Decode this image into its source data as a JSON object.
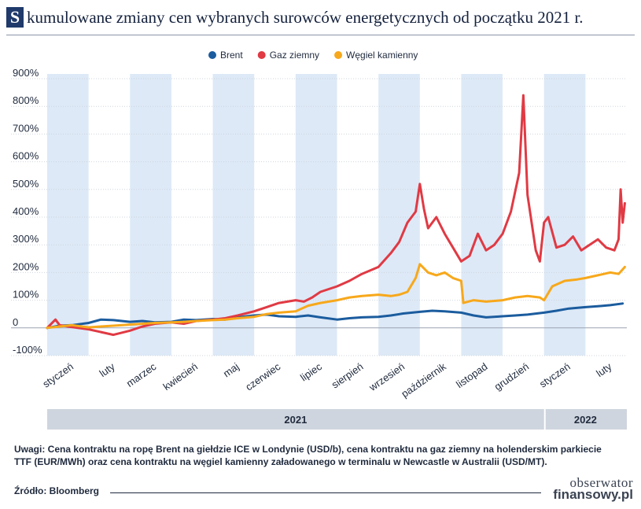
{
  "header": {
    "badge": "S",
    "title": "kumulowane zmiany cen wybranych surowców energetycznych od początku 2021 r."
  },
  "chart_data": {
    "type": "line",
    "title": "Skumulowane zmiany cen wybranych surowców energetycznych od początku 2021 r.",
    "ylim": [
      -100,
      900
    ],
    "y_ticks": [
      -100,
      0,
      100,
      200,
      300,
      400,
      500,
      600,
      700,
      800,
      900
    ],
    "y_tick_labels": [
      "-100%",
      "0",
      "100%",
      "200%",
      "300%",
      "400%",
      "500%",
      "600%",
      "700%",
      "800%",
      "900%"
    ],
    "x_unit": "month index (0 = start of January 2021)",
    "xlim": [
      0,
      14
    ],
    "months": [
      "styczeń",
      "luty",
      "marzec",
      "kwiecień",
      "maj",
      "czerwiec",
      "lipiec",
      "sierpień",
      "wrzesień",
      "październik",
      "listopad",
      "grudzień",
      "styczeń",
      "luty"
    ],
    "years": [
      {
        "label": "2021",
        "start": 0,
        "end": 12
      },
      {
        "label": "2022",
        "start": 12,
        "end": 14
      }
    ],
    "grid": true,
    "legend_position": "top-center",
    "series": [
      {
        "name": "Brent",
        "color": "#1b5c9e",
        "x": [
          0,
          0.3,
          0.6,
          1,
          1.3,
          1.6,
          2,
          2.3,
          2.6,
          3,
          3.3,
          3.6,
          4,
          4.3,
          4.6,
          5,
          5.3,
          5.6,
          6,
          6.3,
          6.6,
          7,
          7.3,
          7.6,
          8,
          8.3,
          8.6,
          9,
          9.3,
          9.6,
          10,
          10.3,
          10.6,
          11,
          11.3,
          11.6,
          12,
          12.3,
          12.6,
          13,
          13.3,
          13.6,
          13.9
        ],
        "y": [
          0,
          8,
          10,
          18,
          30,
          28,
          22,
          25,
          20,
          22,
          30,
          28,
          32,
          30,
          38,
          45,
          48,
          42,
          40,
          45,
          38,
          30,
          35,
          38,
          40,
          45,
          52,
          58,
          62,
          60,
          55,
          45,
          38,
          42,
          45,
          48,
          55,
          62,
          70,
          75,
          78,
          82,
          88
        ]
      },
      {
        "name": "Gaz ziemny",
        "color": "#e03a44",
        "x": [
          0,
          0.2,
          0.3,
          0.5,
          1,
          1.3,
          1.6,
          2,
          2.3,
          2.6,
          3,
          3.3,
          3.6,
          4,
          4.3,
          4.6,
          5,
          5.3,
          5.6,
          6,
          6.2,
          6.4,
          6.6,
          7,
          7.3,
          7.6,
          8,
          8.3,
          8.5,
          8.7,
          8.9,
          9.0,
          9.1,
          9.2,
          9.4,
          9.6,
          9.8,
          10.0,
          10.2,
          10.4,
          10.6,
          10.8,
          11.0,
          11.2,
          11.4,
          11.5,
          11.6,
          11.8,
          11.9,
          12.0,
          12.1,
          12.3,
          12.5,
          12.7,
          12.9,
          13.1,
          13.3,
          13.5,
          13.7,
          13.8,
          13.85,
          13.9,
          13.95
        ],
        "y": [
          0,
          30,
          10,
          5,
          -5,
          -15,
          -25,
          -10,
          5,
          15,
          20,
          15,
          25,
          30,
          35,
          45,
          60,
          75,
          90,
          100,
          95,
          110,
          130,
          150,
          170,
          195,
          220,
          270,
          310,
          380,
          420,
          520,
          430,
          360,
          400,
          340,
          290,
          240,
          260,
          340,
          280,
          300,
          340,
          420,
          560,
          840,
          480,
          280,
          240,
          380,
          400,
          290,
          300,
          330,
          280,
          300,
          320,
          290,
          280,
          320,
          500,
          380,
          450
        ]
      },
      {
        "name": "Węgiel kamienny",
        "color": "#f7a81b",
        "x": [
          0,
          0.3,
          0.6,
          1,
          1.3,
          1.6,
          2,
          2.3,
          2.6,
          3,
          3.3,
          3.6,
          4,
          4.3,
          4.6,
          5,
          5.3,
          5.6,
          6,
          6.3,
          6.6,
          7,
          7.3,
          7.6,
          8,
          8.3,
          8.5,
          8.7,
          8.9,
          9.0,
          9.2,
          9.4,
          9.6,
          9.8,
          10.0,
          10.05,
          10.3,
          10.6,
          11,
          11.3,
          11.6,
          11.9,
          12.0,
          12.2,
          12.5,
          12.8,
          13.0,
          13.3,
          13.6,
          13.8,
          13.95
        ],
        "y": [
          0,
          5,
          10,
          2,
          5,
          8,
          12,
          15,
          18,
          20,
          22,
          25,
          28,
          30,
          35,
          40,
          50,
          55,
          60,
          80,
          90,
          100,
          110,
          115,
          120,
          115,
          120,
          130,
          180,
          230,
          200,
          190,
          200,
          180,
          170,
          90,
          100,
          95,
          100,
          110,
          115,
          110,
          100,
          150,
          170,
          175,
          180,
          190,
          200,
          195,
          220
        ]
      }
    ]
  },
  "footer": {
    "notes_line1": "Uwagi: Cena kontraktu na ropę Brent na giełdzie ICE w Londynie (USD/b), cena kontraktu na gaz ziemny na holenderskim parkiecie",
    "notes_line2": "TTF (EUR/MWh) oraz cena kontraktu na węgiel kamienny załadowanego w terminalu w Newcastle w Australii (USD/MT).",
    "source": "Źródło: Bloomberg",
    "logo_top": "obserwator",
    "logo_bottom": "finansowy.pl"
  }
}
